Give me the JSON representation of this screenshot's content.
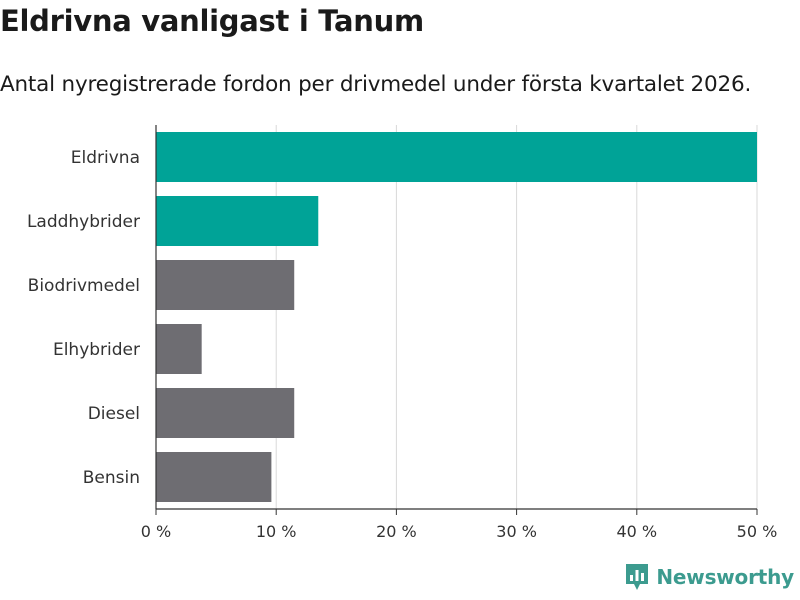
{
  "title": "Eldrivna vanligast i Tanum",
  "subtitle": "Antal nyregistrerade fordon per drivmedel under första kvartalet 2026.",
  "brand": "Newsworthy",
  "colors": {
    "highlight": "#00a397",
    "default": "#6e6d72",
    "grid": "#d9d9d9",
    "axis": "#333333",
    "brand": "#3c9b8f"
  },
  "chart_data": {
    "type": "bar",
    "orientation": "horizontal",
    "title": "Eldrivna vanligast i Tanum",
    "subtitle": "Antal nyregistrerade fordon per drivmedel under första kvartalet 2026.",
    "categories": [
      "Eldrivna",
      "Laddhybrider",
      "Biodrivmedel",
      "Elhybrider",
      "Diesel",
      "Bensin"
    ],
    "values": [
      50,
      13.5,
      11.5,
      3.8,
      11.5,
      9.6
    ],
    "highlighted": [
      true,
      true,
      false,
      false,
      false,
      false
    ],
    "xlim": [
      0,
      50
    ],
    "xticks": [
      0,
      10,
      20,
      30,
      40,
      50
    ],
    "xtick_labels": [
      "0 %",
      "10 %",
      "20 %",
      "30 %",
      "40 %",
      "50 %"
    ],
    "xlabel": "",
    "ylabel": "",
    "grid": true
  }
}
